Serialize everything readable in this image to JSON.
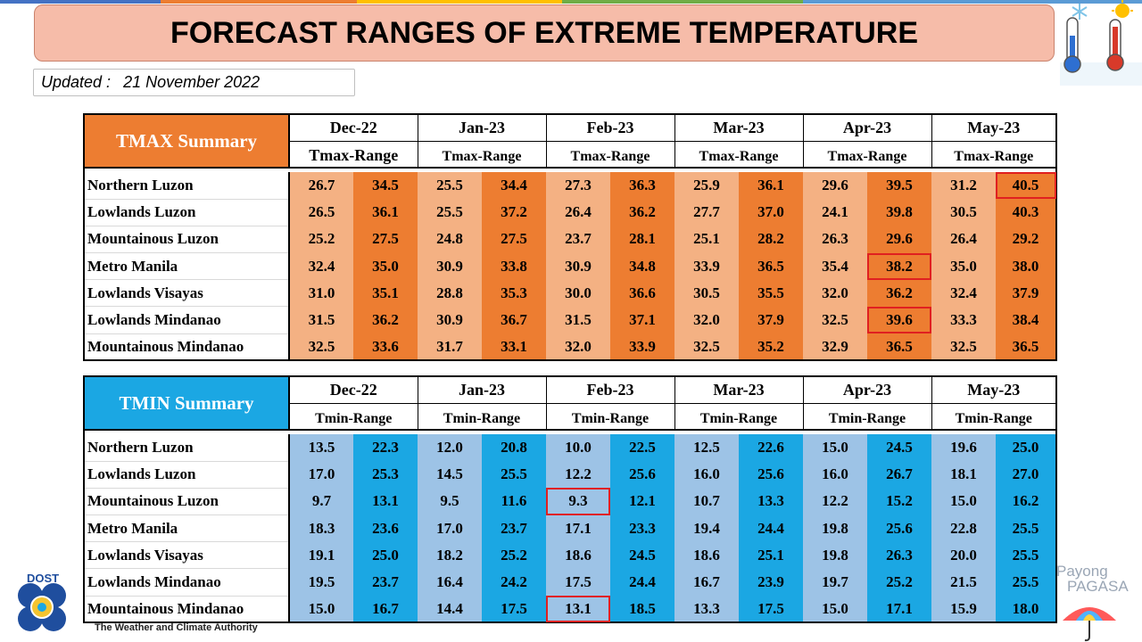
{
  "title": "FORECAST RANGES OF EXTREME TEMPERATURE",
  "updated": {
    "label": "Updated :",
    "date": "21 November 2022"
  },
  "months": [
    "Dec-22",
    "Jan-23",
    "Feb-23",
    "Mar-23",
    "Apr-23",
    "May-23"
  ],
  "tmax": {
    "title": "TMAX Summary",
    "range_label": "Tmax-Range",
    "color_low": "#f4b183",
    "color_high": "#ed7d31",
    "rows": [
      {
        "region": "Northern Luzon",
        "values": [
          "26.7",
          "34.5",
          "25.5",
          "34.4",
          "27.3",
          "36.3",
          "25.9",
          "36.1",
          "29.6",
          "39.5",
          "31.2",
          "40.5"
        ]
      },
      {
        "region": "Lowlands Luzon",
        "values": [
          "26.5",
          "36.1",
          "25.5",
          "37.2",
          "26.4",
          "36.2",
          "27.7",
          "37.0",
          "24.1",
          "39.8",
          "30.5",
          "40.3"
        ]
      },
      {
        "region": "Mountainous Luzon",
        "values": [
          "25.2",
          "27.5",
          "24.8",
          "27.5",
          "23.7",
          "28.1",
          "25.1",
          "28.2",
          "26.3",
          "29.6",
          "26.4",
          "29.2"
        ]
      },
      {
        "region": "Metro Manila",
        "values": [
          "32.4",
          "35.0",
          "30.9",
          "33.8",
          "30.9",
          "34.8",
          "33.9",
          "36.5",
          "35.4",
          "38.2",
          "35.0",
          "38.0"
        ]
      },
      {
        "region": "Lowlands Visayas",
        "values": [
          "31.0",
          "35.1",
          "28.8",
          "35.3",
          "30.0",
          "36.6",
          "30.5",
          "35.5",
          "32.0",
          "36.2",
          "32.4",
          "37.9"
        ]
      },
      {
        "region": "Lowlands Mindanao",
        "values": [
          "31.5",
          "36.2",
          "30.9",
          "36.7",
          "31.5",
          "37.1",
          "32.0",
          "37.9",
          "32.5",
          "39.6",
          "33.3",
          "38.4"
        ]
      },
      {
        "region": "Mountainous Mindanao",
        "values": [
          "32.5",
          "33.6",
          "31.7",
          "33.1",
          "32.0",
          "33.9",
          "32.5",
          "35.2",
          "32.9",
          "36.5",
          "32.5",
          "36.5"
        ]
      }
    ]
  },
  "tmin": {
    "title": "TMIN Summary",
    "range_label": "Tmin-Range",
    "color_low": "#9dc3e6",
    "color_high": "#1ba7e3",
    "rows": [
      {
        "region": "Northern Luzon",
        "values": [
          "13.5",
          "22.3",
          "12.0",
          "20.8",
          "10.0",
          "22.5",
          "12.5",
          "22.6",
          "15.0",
          "24.5",
          "19.6",
          "25.0"
        ]
      },
      {
        "region": "Lowlands Luzon",
        "values": [
          "17.0",
          "25.3",
          "14.5",
          "25.5",
          "12.2",
          "25.6",
          "16.0",
          "25.6",
          "16.0",
          "26.7",
          "18.1",
          "27.0"
        ]
      },
      {
        "region": "Mountainous Luzon",
        "values": [
          "9.7",
          "13.1",
          "9.5",
          "11.6",
          "9.3",
          "12.1",
          "10.7",
          "13.3",
          "12.2",
          "15.2",
          "15.0",
          "16.2"
        ]
      },
      {
        "region": "Metro Manila",
        "values": [
          "18.3",
          "23.6",
          "17.0",
          "23.7",
          "17.1",
          "23.3",
          "19.4",
          "24.4",
          "19.8",
          "25.6",
          "22.8",
          "25.5"
        ]
      },
      {
        "region": "Lowlands Visayas",
        "values": [
          "19.1",
          "25.0",
          "18.2",
          "25.2",
          "18.6",
          "24.5",
          "18.6",
          "25.1",
          "19.8",
          "26.3",
          "20.0",
          "25.5"
        ]
      },
      {
        "region": "Lowlands Mindanao",
        "values": [
          "19.5",
          "23.7",
          "16.4",
          "24.2",
          "17.5",
          "24.4",
          "16.7",
          "23.9",
          "19.7",
          "25.2",
          "21.5",
          "25.5"
        ]
      },
      {
        "region": "Mountainous Mindanao",
        "values": [
          "15.0",
          "16.7",
          "14.4",
          "17.5",
          "13.1",
          "18.5",
          "13.3",
          "17.5",
          "15.0",
          "17.1",
          "15.9",
          "18.0"
        ]
      }
    ]
  },
  "highlight_color": "#e02020",
  "footer": {
    "dost": "DOST",
    "tagline": "The Weather and Climate Authority",
    "payong_line1": "Payong",
    "payong_line2": "PAGASA"
  }
}
